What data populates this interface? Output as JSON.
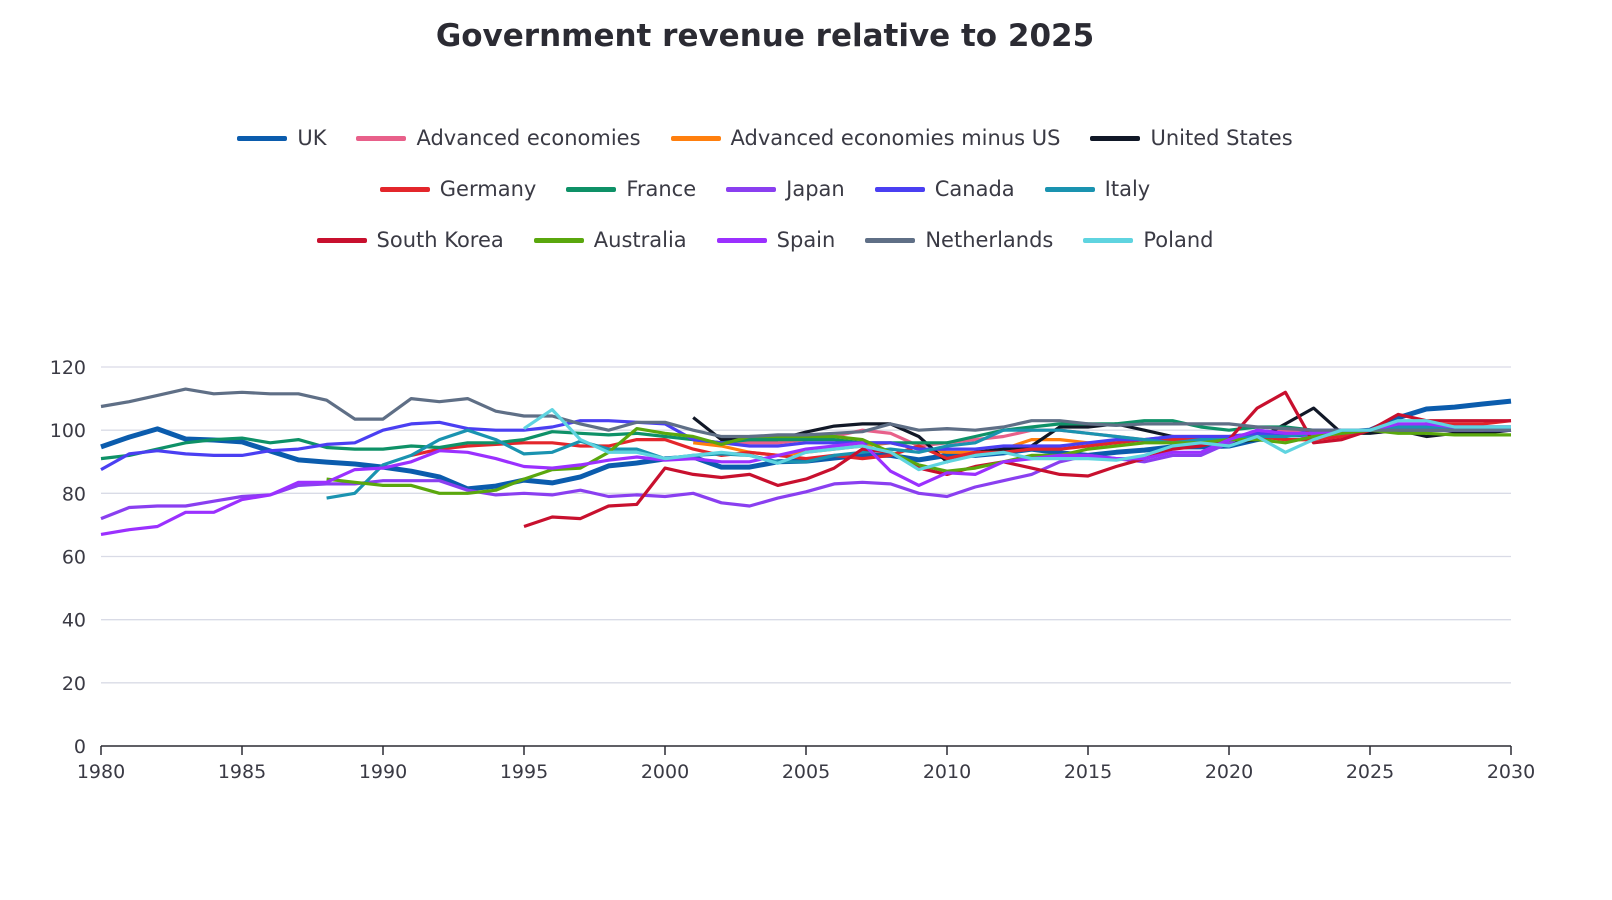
{
  "chart_data": {
    "type": "line",
    "title": "Government revenue relative to 2025",
    "xlabel": "",
    "ylabel": "",
    "xlim": [
      1980,
      2030
    ],
    "ylim": [
      0,
      120
    ],
    "x_ticks": [
      "1980",
      "1985",
      "1990",
      "1995",
      "2000",
      "2005",
      "2010",
      "2015",
      "2020",
      "2025",
      "2030"
    ],
    "y_ticks": [
      "0",
      "20",
      "40",
      "60",
      "80",
      "100",
      "120"
    ],
    "grid": "horizontal",
    "legend_position": "top",
    "series": [
      {
        "name": "UK",
        "color": "#0b5cad",
        "start": 1980,
        "values": [
          94.7,
          97.8,
          100.4,
          97.2,
          96.9,
          96.3,
          93.4,
          90.6,
          89.9,
          89.3,
          88.3,
          87,
          85.2,
          81.4,
          82.3,
          84.2,
          83.3,
          85.2,
          88.7,
          89.6,
          90.9,
          91.5,
          88.3,
          88.3,
          90,
          90.2,
          91.2,
          92.1,
          92,
          90.6,
          92,
          92,
          92.8,
          94,
          92.8,
          92,
          93,
          93.7,
          94.7,
          94.7,
          95,
          97,
          98.5,
          98.5,
          99.4,
          100,
          103.9,
          106.7,
          107.3,
          108.3,
          109.2
        ]
      },
      {
        "name": "Advanced economies",
        "color": "#e8608a",
        "start": 2001,
        "values": [
          97,
          96,
          96,
          96,
          97,
          98,
          100,
          99,
          95,
          96,
          97,
          98,
          100,
          100,
          99,
          98,
          97,
          98,
          98,
          98,
          99,
          100,
          99,
          99,
          100,
          100,
          100,
          100,
          100,
          100
        ]
      },
      {
        "name": "Advanced economies minus US",
        "color": "#ff7f0e",
        "start": 2001,
        "values": [
          96,
          95,
          93,
          92,
          93,
          94,
          95,
          96,
          94,
          93,
          93,
          94,
          97,
          97,
          96,
          96,
          97,
          97,
          97,
          97,
          98,
          97,
          97,
          99,
          100,
          100,
          100,
          100,
          100,
          100
        ]
      },
      {
        "name": "United States",
        "color": "#111827",
        "start": 2001,
        "values": [
          104,
          97,
          97,
          97,
          99.4,
          101.3,
          102,
          102,
          98,
          90,
          93,
          94,
          95,
          101,
          101,
          102,
          100,
          98,
          97,
          96,
          97,
          102,
          107,
          99,
          99,
          100,
          98,
          99,
          99,
          100
        ]
      },
      {
        "name": "Germany",
        "color": "#e3262b",
        "start": 1991,
        "values": [
          92,
          94,
          95,
          95.5,
          96,
          96,
          95,
          95,
          97,
          97,
          94,
          92,
          93,
          92,
          91,
          92,
          91,
          92,
          95,
          91,
          93,
          93,
          94,
          94,
          95,
          96,
          97,
          97,
          97,
          97,
          98,
          97,
          97,
          98,
          100,
          101,
          102,
          102,
          102,
          103
        ]
      },
      {
        "name": "France",
        "color": "#0e9167",
        "start": 1980,
        "values": [
          91,
          92,
          94,
          96,
          97,
          97.5,
          96,
          97,
          94.5,
          94,
          94,
          95,
          94.5,
          96,
          96,
          97,
          99.5,
          99,
          98.5,
          99,
          98,
          97,
          96,
          97,
          97,
          97,
          97,
          96,
          96,
          96,
          96,
          98,
          100,
          101,
          102,
          102,
          102,
          103,
          103,
          101,
          100,
          101,
          101,
          100,
          100,
          100,
          100,
          100,
          100,
          101,
          101
        ]
      },
      {
        "name": "Japan",
        "color": "#8a3ff0",
        "start": 1980,
        "values": [
          72,
          75.5,
          76,
          76,
          77.5,
          79,
          79.5,
          82.5,
          83,
          83,
          84,
          84,
          84,
          81,
          79.5,
          80,
          79.5,
          81,
          79,
          79.5,
          79,
          80,
          77,
          76,
          78.5,
          80.5,
          83,
          83.5,
          83,
          80,
          79,
          82,
          84,
          86,
          90,
          92,
          91,
          90,
          92,
          92,
          96,
          100,
          99,
          98,
          99,
          100,
          100,
          100,
          100,
          100,
          100
        ]
      },
      {
        "name": "Canada",
        "color": "#4a3ff2",
        "start": 1980,
        "values": [
          87.5,
          92.5,
          93.5,
          92.5,
          92,
          92,
          93.5,
          94,
          95.5,
          96,
          100,
          102,
          102.5,
          100.5,
          100,
          100,
          101,
          103,
          103,
          102.5,
          102,
          97,
          96,
          95,
          95,
          96,
          96,
          96,
          96,
          94,
          94,
          94,
          95,
          95,
          95,
          96,
          97,
          97,
          98,
          98,
          98,
          99,
          98,
          100,
          100,
          100,
          100,
          100,
          100,
          100,
          100
        ]
      },
      {
        "name": "Italy",
        "color": "#1a93b0",
        "start": 1988,
        "values": [
          78.5,
          80,
          89,
          92,
          97,
          100,
          97,
          92.5,
          93,
          96.5,
          94,
          94,
          91,
          92,
          92.5,
          92,
          90,
          90,
          92,
          93,
          94,
          93,
          95,
          96,
          100,
          100,
          100,
          99,
          98,
          97,
          96,
          97,
          97,
          98,
          98,
          99,
          99,
          100,
          101,
          101,
          101,
          101,
          101
        ]
      },
      {
        "name": "South Korea",
        "color": "#c8102e",
        "start": 1995,
        "values": [
          69.5,
          72.5,
          72,
          76,
          76.5,
          88,
          86,
          85,
          86,
          82.5,
          84.5,
          88,
          94,
          93,
          88,
          86,
          88.5,
          90,
          88,
          86,
          85.5,
          88.5,
          91,
          94,
          95,
          97,
          107,
          112,
          96,
          97,
          100,
          105,
          103,
          103,
          103,
          103
        ]
      },
      {
        "name": "Australia",
        "color": "#5aa70d",
        "start": 1988,
        "values": [
          84.5,
          83.5,
          82.5,
          82.5,
          80,
          80,
          81,
          84.5,
          87.5,
          88,
          93,
          100.5,
          99,
          98,
          95.5,
          98,
          98,
          98,
          98,
          97,
          93,
          89,
          87,
          88,
          90,
          92,
          92,
          94,
          95,
          96,
          96,
          96,
          97,
          97,
          96,
          98,
          99,
          100,
          99,
          99,
          98.5,
          98.5,
          98.5
        ]
      },
      {
        "name": "Spain",
        "color": "#9b30ff",
        "start": 1980,
        "values": [
          67,
          68.5,
          69.5,
          74,
          74,
          78,
          79.5,
          83.5,
          83.5,
          87.5,
          88,
          90,
          93.5,
          93,
          91,
          88.5,
          88,
          89,
          90.5,
          91.5,
          90.5,
          91,
          90,
          90,
          92,
          94,
          95,
          96,
          87,
          82.5,
          86.5,
          86,
          90,
          91,
          92,
          92,
          91,
          91,
          93,
          93,
          97,
          100,
          99,
          99,
          100,
          100,
          102,
          102,
          101,
          101,
          101
        ]
      },
      {
        "name": "Netherlands",
        "color": "#5f6f86",
        "start": 1980,
        "values": [
          107.5,
          109,
          111,
          113,
          111.5,
          112,
          111.5,
          111.5,
          109.5,
          103.5,
          103.5,
          110,
          109,
          110,
          106,
          104.5,
          104.5,
          102,
          100,
          102.5,
          102.5,
          100,
          98,
          98,
          98.5,
          98.5,
          99,
          99.5,
          102,
          100,
          100.5,
          100,
          101,
          103,
          103,
          102,
          101.5,
          102,
          102,
          102,
          102,
          101,
          100.5,
          100,
          100,
          100,
          100,
          100,
          100,
          100,
          100
        ]
      },
      {
        "name": "Poland",
        "color": "#5fd4e0",
        "start": 1995,
        "values": [
          100.5,
          106.5,
          97,
          93,
          93,
          91,
          92,
          93,
          92,
          89.5,
          93,
          94,
          95,
          93,
          87.5,
          90,
          92,
          93,
          91,
          91,
          91,
          90.5,
          92,
          95,
          96,
          95,
          98,
          93,
          97,
          100,
          100,
          103,
          103,
          101,
          101,
          101
        ]
      }
    ]
  }
}
